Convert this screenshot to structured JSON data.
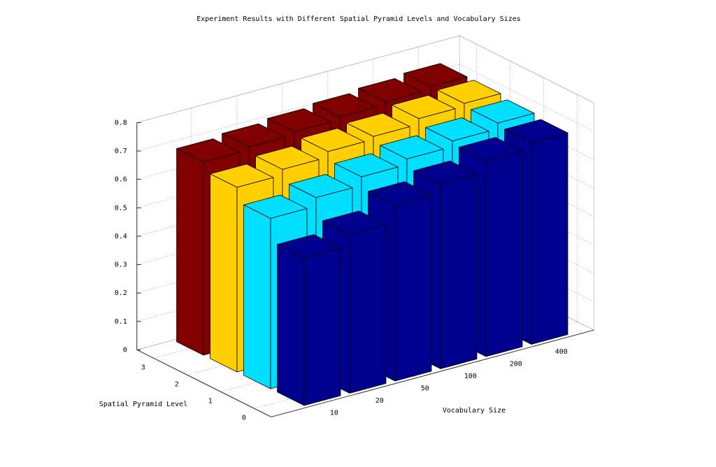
{
  "chart_data": {
    "type": "bar3d",
    "title": "Experiment Results with Different Spatial Pyramid Levels and Vocabulary Sizes",
    "xlabel": "Vocabulary Size",
    "ylabel": "Spatial Pyramid Level",
    "categories": [
      10,
      20,
      50,
      100,
      200,
      400
    ],
    "levels": [
      0,
      1,
      2,
      3
    ],
    "series": [
      {
        "color": "#00008f",
        "values": [
          0.52,
          0.56,
          0.62,
          0.65,
          0.69,
          0.71
        ]
      },
      {
        "color": "#00dfff",
        "values": [
          0.6,
          0.63,
          0.66,
          0.68,
          0.7,
          0.72
        ]
      },
      {
        "color": "#ffcf00",
        "values": [
          0.65,
          0.67,
          0.69,
          0.7,
          0.72,
          0.73
        ]
      },
      {
        "color": "#800000",
        "values": [
          0.68,
          0.69,
          0.7,
          0.71,
          0.72,
          0.73
        ]
      }
    ],
    "zlim": [
      0,
      0.8
    ],
    "zticks": [
      0,
      0.1,
      0.2,
      0.3,
      0.4,
      0.5,
      0.6,
      0.7,
      0.8
    ],
    "grid": true
  }
}
